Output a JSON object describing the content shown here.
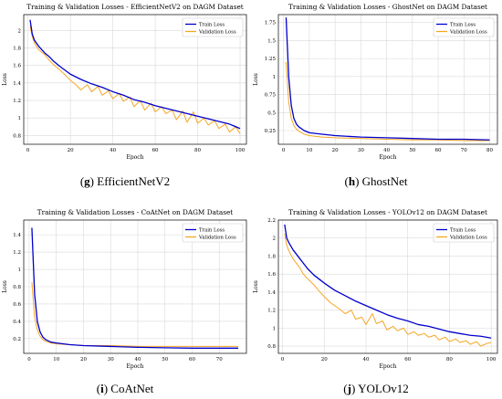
{
  "colors": {
    "train": "#0000cc",
    "validation": "#f5a623",
    "grid": "#d9d9d9"
  },
  "chart_data": [
    {
      "type": "line",
      "title": "Training & Validation Losses - EfficientNetV2 on DAGM Dataset",
      "xlabel": "Epoch",
      "ylabel": "Loss",
      "xlim": [
        -2,
        103
      ],
      "ylim": [
        0.7,
        2.18
      ],
      "xticks": [
        0,
        20,
        40,
        60,
        80,
        100
      ],
      "yticks": [
        0.8,
        1.0,
        1.2,
        1.4,
        1.6,
        1.8,
        2.0
      ],
      "grid": true,
      "legend": "top-right",
      "caption_letter": "g",
      "caption_text": " EfficientNetV2",
      "series": [
        {
          "name": "Train Loss",
          "color": "#0000cc",
          "x": [
            1,
            2,
            3,
            5,
            8,
            10,
            12,
            15,
            20,
            25,
            30,
            35,
            40,
            45,
            50,
            55,
            60,
            65,
            70,
            75,
            80,
            85,
            90,
            95,
            100
          ],
          "y": [
            2.12,
            1.96,
            1.89,
            1.82,
            1.74,
            1.7,
            1.65,
            1.59,
            1.5,
            1.44,
            1.39,
            1.35,
            1.3,
            1.26,
            1.21,
            1.18,
            1.14,
            1.11,
            1.08,
            1.05,
            1.02,
            0.99,
            0.96,
            0.93,
            0.88
          ]
        },
        {
          "name": "Validation Loss",
          "color": "#f5a623",
          "x": [
            1,
            2,
            3,
            5,
            8,
            10,
            12,
            15,
            18,
            20,
            23,
            25,
            28,
            30,
            33,
            35,
            38,
            40,
            43,
            45,
            48,
            50,
            53,
            55,
            58,
            60,
            63,
            65,
            68,
            70,
            73,
            75,
            78,
            80,
            83,
            85,
            88,
            90,
            93,
            95,
            98,
            100
          ],
          "y": [
            2.05,
            1.93,
            1.86,
            1.78,
            1.72,
            1.66,
            1.61,
            1.55,
            1.48,
            1.43,
            1.37,
            1.32,
            1.38,
            1.3,
            1.36,
            1.26,
            1.31,
            1.22,
            1.28,
            1.19,
            1.24,
            1.13,
            1.2,
            1.09,
            1.17,
            1.07,
            1.13,
            1.05,
            1.09,
            0.98,
            1.08,
            0.95,
            1.07,
            0.94,
            1.0,
            0.92,
            0.97,
            0.88,
            0.93,
            0.84,
            0.9,
            0.82
          ]
        }
      ]
    },
    {
      "type": "line",
      "title": "Training & Validation Losses - GhostNet on DAGM Dataset",
      "xlabel": "Epoch",
      "ylabel": "Loss",
      "xlim": [
        -2,
        83
      ],
      "ylim": [
        0.06,
        1.86
      ],
      "xticks": [
        0,
        10,
        20,
        30,
        40,
        50,
        60,
        70,
        80
      ],
      "yticks": [
        0.25,
        0.5,
        0.75,
        1.0,
        1.25,
        1.5,
        1.75
      ],
      "grid": true,
      "legend": "top-right",
      "caption_letter": "h",
      "caption_text": " GhostNet",
      "series": [
        {
          "name": "Train Loss",
          "color": "#0000cc",
          "x": [
            1,
            2,
            3,
            4,
            5,
            6,
            8,
            10,
            15,
            20,
            30,
            40,
            50,
            60,
            70,
            80
          ],
          "y": [
            1.82,
            1.0,
            0.6,
            0.42,
            0.34,
            0.3,
            0.25,
            0.22,
            0.2,
            0.18,
            0.16,
            0.15,
            0.14,
            0.13,
            0.13,
            0.12
          ]
        },
        {
          "name": "Validation Loss",
          "color": "#f5a623",
          "x": [
            1,
            2,
            3,
            4,
            5,
            6,
            8,
            10,
            15,
            20,
            30,
            40,
            50,
            60,
            70,
            80
          ],
          "y": [
            1.2,
            0.65,
            0.42,
            0.32,
            0.27,
            0.24,
            0.2,
            0.18,
            0.16,
            0.15,
            0.14,
            0.13,
            0.12,
            0.12,
            0.11,
            0.11
          ]
        }
      ]
    },
    {
      "type": "line",
      "title": "Training & Validation Losses - CoAtNet on DAGM Dataset",
      "xlabel": "Epoch",
      "ylabel": "Loss",
      "xlim": [
        -2,
        80
      ],
      "ylim": [
        0.03,
        1.57
      ],
      "xticks": [
        0,
        10,
        20,
        30,
        40,
        50,
        60,
        70
      ],
      "yticks": [
        0.2,
        0.4,
        0.6,
        0.8,
        1.0,
        1.2,
        1.4
      ],
      "grid": true,
      "legend": "top-right",
      "caption_letter": "i",
      "caption_text": " CoAtNet",
      "series": [
        {
          "name": "Train Loss",
          "color": "#0000cc",
          "x": [
            1,
            2,
            3,
            4,
            5,
            6,
            8,
            10,
            15,
            20,
            30,
            40,
            50,
            60,
            70,
            77
          ],
          "y": [
            1.48,
            0.72,
            0.4,
            0.28,
            0.22,
            0.19,
            0.16,
            0.15,
            0.13,
            0.12,
            0.11,
            0.1,
            0.095,
            0.09,
            0.09,
            0.09
          ]
        },
        {
          "name": "Validation Loss",
          "color": "#f5a623",
          "x": [
            1,
            2,
            3,
            4,
            5,
            6,
            8,
            10,
            15,
            20,
            30,
            40,
            50,
            60,
            70,
            77
          ],
          "y": [
            0.85,
            0.45,
            0.3,
            0.23,
            0.19,
            0.17,
            0.15,
            0.14,
            0.13,
            0.12,
            0.12,
            0.11,
            0.11,
            0.11,
            0.11,
            0.11
          ]
        }
      ]
    },
    {
      "type": "line",
      "title": "Training & Validation Losses - YOLOv12 on DAGM Dataset",
      "xlabel": "Epoch",
      "ylabel": "Loss",
      "xlim": [
        -2,
        103
      ],
      "ylim": [
        0.72,
        2.2
      ],
      "xticks": [
        0,
        20,
        40,
        60,
        80,
        100
      ],
      "yticks": [
        0.8,
        1.0,
        1.2,
        1.4,
        1.6,
        1.8,
        2.0,
        2.2
      ],
      "grid": true,
      "legend": "top-right",
      "caption_letter": "j",
      "caption_text": " YOLOv12",
      "series": [
        {
          "name": "Train Loss",
          "color": "#0000cc",
          "x": [
            1,
            2,
            3,
            5,
            8,
            10,
            12,
            15,
            20,
            25,
            30,
            35,
            40,
            45,
            50,
            55,
            60,
            65,
            70,
            75,
            80,
            85,
            90,
            95,
            100
          ],
          "y": [
            2.15,
            2.0,
            1.95,
            1.87,
            1.78,
            1.72,
            1.66,
            1.59,
            1.5,
            1.42,
            1.36,
            1.3,
            1.25,
            1.2,
            1.15,
            1.11,
            1.08,
            1.04,
            1.02,
            0.99,
            0.96,
            0.94,
            0.92,
            0.91,
            0.89
          ]
        },
        {
          "name": "Validation Loss",
          "color": "#f5a623",
          "x": [
            1,
            2,
            3,
            5,
            8,
            10,
            12,
            15,
            18,
            20,
            23,
            25,
            28,
            30,
            33,
            35,
            38,
            40,
            43,
            45,
            48,
            50,
            53,
            55,
            58,
            60,
            63,
            65,
            68,
            70,
            73,
            75,
            78,
            80,
            83,
            85,
            88,
            90,
            93,
            95,
            98,
            100
          ],
          "y": [
            2.05,
            1.92,
            1.86,
            1.77,
            1.68,
            1.6,
            1.55,
            1.48,
            1.4,
            1.35,
            1.28,
            1.25,
            1.2,
            1.16,
            1.2,
            1.1,
            1.12,
            1.04,
            1.16,
            1.05,
            1.08,
            0.98,
            1.02,
            0.97,
            1.0,
            0.93,
            0.96,
            0.92,
            0.94,
            0.9,
            0.92,
            0.87,
            0.9,
            0.85,
            0.88,
            0.84,
            0.86,
            0.82,
            0.85,
            0.8,
            0.83,
            0.84
          ]
        }
      ]
    }
  ]
}
